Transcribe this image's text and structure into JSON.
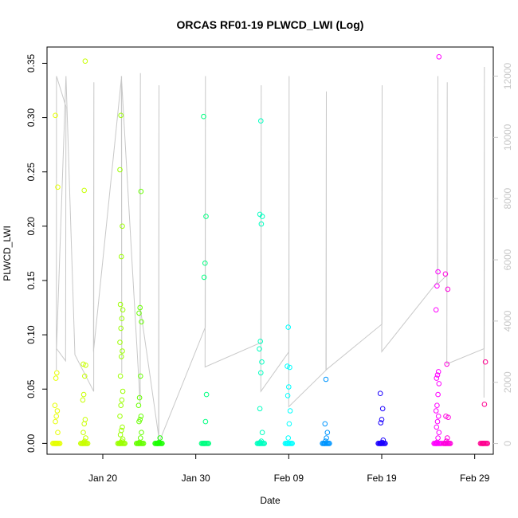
{
  "chart_data": {
    "type": "scatter",
    "title": "ORCAS RF01-19 PLWCD_LWI (Log)",
    "xlabel": "Date",
    "ylabel": "PLWCD_LWI",
    "x_ticks": [
      "Jan 20",
      "Jan 30",
      "Feb 09",
      "Feb 19",
      "Feb 29"
    ],
    "x_range": [
      "2016-01-14",
      "2016-03-02"
    ],
    "y_ticks": [
      "0.00",
      "0.05",
      "0.10",
      "0.15",
      "0.20",
      "0.25",
      "0.30",
      "0.35"
    ],
    "ylim": [
      -0.01,
      0.365
    ],
    "y2_ticks": [
      "0",
      "2000",
      "4000",
      "6000",
      "8000",
      "10000",
      "12000"
    ],
    "y2lim": [
      -350,
      12950
    ],
    "grid": false,
    "legend": "none",
    "altitude_line_color": "#c8c8c8",
    "altitude_segments": [
      [
        [
          "2016-01-15",
          2400
        ],
        [
          "2016-01-15",
          12000
        ],
        [
          "2016-01-16",
          11000
        ],
        [
          "2016-01-16",
          2700
        ],
        [
          "2016-01-15",
          3100
        ],
        [
          "2016-01-16",
          12000
        ],
        [
          "2016-01-17",
          2900
        ],
        [
          "2016-01-19",
          1700
        ],
        [
          "2016-01-19",
          11800
        ],
        [
          "2016-01-19",
          3000
        ],
        [
          "2016-01-22",
          12000
        ],
        [
          "2016-01-22",
          2300
        ],
        [
          "2016-01-22",
          12000
        ],
        [
          "2016-01-24",
          1300
        ],
        [
          "2016-01-24",
          12100
        ],
        [
          "2016-01-24",
          4500
        ],
        [
          "2016-01-26",
          200
        ],
        [
          "2016-01-26",
          11700
        ],
        [
          "2016-01-26",
          0
        ]
      ],
      [
        [
          "2016-01-26",
          0
        ],
        [
          "2016-01-31",
          3800
        ],
        [
          "2016-01-31",
          12000
        ],
        [
          "2016-01-31",
          2500
        ],
        [
          "2016-02-06",
          3300
        ],
        [
          "2016-02-06",
          11700
        ],
        [
          "2016-02-06",
          1700
        ],
        [
          "2016-02-09",
          3000
        ],
        [
          "2016-02-09",
          12000
        ],
        [
          "2016-02-09",
          1200
        ],
        [
          "2016-02-13",
          2400
        ],
        [
          "2016-02-13",
          11500
        ],
        [
          "2016-02-13",
          2400
        ],
        [
          "2016-02-19",
          3900
        ],
        [
          "2016-02-19",
          11700
        ],
        [
          "2016-02-19",
          3000
        ],
        [
          "2016-02-25",
          5300
        ],
        [
          "2016-02-25",
          12000
        ],
        [
          "2016-02-25",
          5200
        ],
        [
          "2016-02-26",
          5500
        ],
        [
          "2016-02-26",
          11800
        ],
        [
          "2016-02-26",
          2600
        ],
        [
          "2016-03-01",
          3100
        ],
        [
          "2016-03-01",
          12300
        ],
        [
          "2016-03-01",
          1500
        ]
      ]
    ],
    "series": [
      {
        "date": "2016-01-15",
        "color": "#e6ff00",
        "values": [
          0.0,
          0.0,
          0.0,
          0.01,
          0.02,
          0.025,
          0.03,
          0.035,
          0.06,
          0.065,
          0.236,
          0.302
        ]
      },
      {
        "date": "2016-01-18",
        "color": "#c8ff00",
        "values": [
          0.0,
          0.001,
          0.002,
          0.005,
          0.01,
          0.018,
          0.022,
          0.04,
          0.045,
          0.062,
          0.072,
          0.073,
          0.233,
          0.352
        ]
      },
      {
        "date": "2016-01-22",
        "color": "#9bff00",
        "values": [
          0.0,
          0.001,
          0.002,
          0.004,
          0.008,
          0.012,
          0.015,
          0.025,
          0.035,
          0.04,
          0.048,
          0.062,
          0.08,
          0.085,
          0.093,
          0.106,
          0.115,
          0.123,
          0.128,
          0.172,
          0.2,
          0.252,
          0.302
        ]
      },
      {
        "date": "2016-01-24",
        "color": "#66ff00",
        "values": [
          0.0,
          0.001,
          0.005,
          0.01,
          0.02,
          0.022,
          0.025,
          0.035,
          0.042,
          0.062,
          0.112,
          0.12,
          0.125,
          0.232
        ]
      },
      {
        "date": "2016-01-26",
        "color": "#1aff00",
        "values": [
          0.0,
          0.0,
          0.001,
          0.005
        ]
      },
      {
        "date": "2016-01-31",
        "color": "#00ff80",
        "values": [
          0.0,
          0.0,
          0.02,
          0.045,
          0.153,
          0.166,
          0.209,
          0.301
        ]
      },
      {
        "date": "2016-02-06",
        "color": "#00ffc0",
        "values": [
          0.0,
          0.001,
          0.002,
          0.01,
          0.032,
          0.065,
          0.075,
          0.087,
          0.094,
          0.202,
          0.209,
          0.211,
          0.297
        ]
      },
      {
        "date": "2016-02-09",
        "color": "#00ffff",
        "values": [
          0.0,
          0.005,
          0.018,
          0.03,
          0.044,
          0.052,
          0.07,
          0.071,
          0.107
        ]
      },
      {
        "date": "2016-02-13",
        "color": "#0096ff",
        "values": [
          0.0,
          0.002,
          0.005,
          0.01,
          0.018,
          0.059
        ]
      },
      {
        "date": "2016-02-19",
        "color": "#1a00ff",
        "values": [
          0.0,
          0.0,
          0.001,
          0.003,
          0.019,
          0.022,
          0.032,
          0.046
        ]
      },
      {
        "date": "2016-02-25",
        "color": "#ff00ff",
        "values": [
          0.0,
          0.001,
          0.005,
          0.01,
          0.015,
          0.02,
          0.025,
          0.03,
          0.035,
          0.045,
          0.055,
          0.06,
          0.063,
          0.066,
          0.123,
          0.145,
          0.158,
          0.356
        ]
      },
      {
        "date": "2016-02-26",
        "color": "#ff00dd",
        "values": [
          0.0,
          0.002,
          0.005,
          0.024,
          0.025,
          0.073,
          0.142,
          0.156
        ]
      },
      {
        "date": "2016-03-01",
        "color": "#ff0090",
        "values": [
          0.0,
          0.0,
          0.036,
          0.075
        ]
      }
    ]
  }
}
